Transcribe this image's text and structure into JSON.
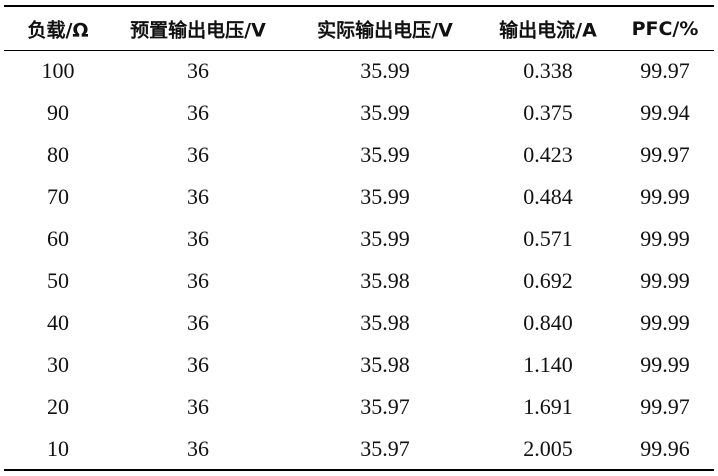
{
  "table": {
    "header": [
      "负载/Ω",
      "预置输出电压/V",
      "实际输出电压/V",
      "输出电流/A",
      "PFC/%"
    ],
    "rows": [
      [
        "100",
        "36",
        "35.99",
        "0.338",
        "99.97"
      ],
      [
        "90",
        "36",
        "35.99",
        "0.375",
        "99.94"
      ],
      [
        "80",
        "36",
        "35.99",
        "0.423",
        "99.97"
      ],
      [
        "70",
        "36",
        "35.99",
        "0.484",
        "99.99"
      ],
      [
        "60",
        "36",
        "35.99",
        "0.571",
        "99.99"
      ],
      [
        "50",
        "36",
        "35.98",
        "0.692",
        "99.99"
      ],
      [
        "40",
        "36",
        "35.98",
        "0.840",
        "99.99"
      ],
      [
        "30",
        "36",
        "35.98",
        "1.140",
        "99.99"
      ],
      [
        "20",
        "36",
        "35.97",
        "1.691",
        "99.97"
      ],
      [
        "10",
        "36",
        "35.97",
        "2.005",
        "99.96"
      ]
    ]
  }
}
